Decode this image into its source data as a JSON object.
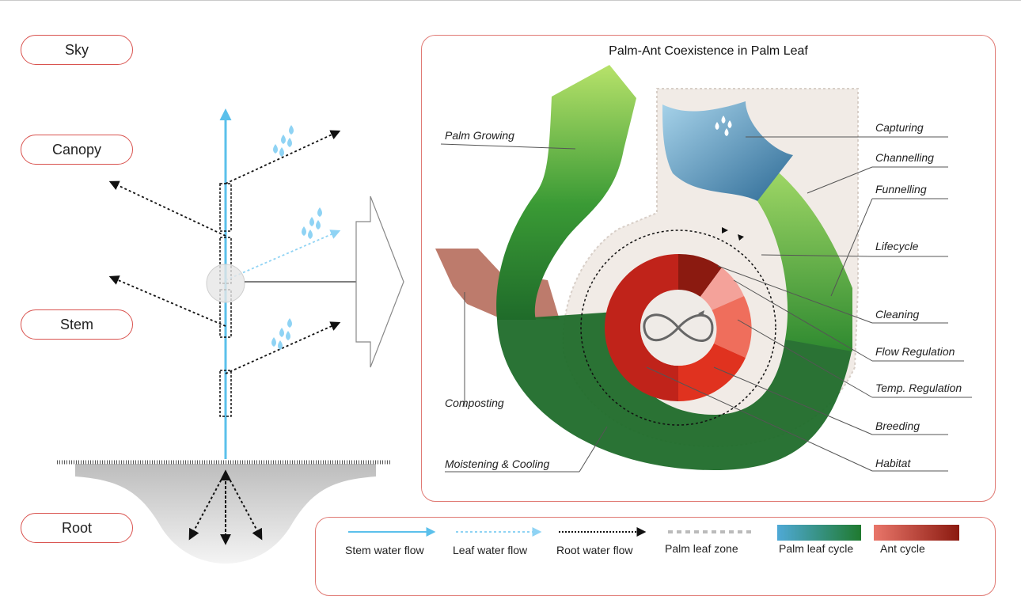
{
  "levels": {
    "sky": "Sky",
    "canopy": "Canopy",
    "stem": "Stem",
    "root": "Root"
  },
  "diagram": {
    "title": "Palm-Ant Coexistence in Palm Leaf",
    "left_labels": {
      "palm_growing": "Palm Growing",
      "composting": "Composting",
      "moistening": "Moistening & Cooling"
    },
    "right_labels": {
      "capturing": "Capturing",
      "channelling": "Channelling",
      "funnelling": "Funnelling",
      "lifecycle": "Lifecycle",
      "cleaning": "Cleaning",
      "flow_regulation": "Flow Regulation",
      "temp_regulation": "Temp. Regulation",
      "breeding": "Breeding",
      "habitat": "Habitat"
    }
  },
  "legend": {
    "stem_water_flow": "Stem water flow",
    "leaf_water_flow": "Leaf water flow",
    "root_water_flow": "Root water flow",
    "palm_leaf_zone": "Palm leaf zone",
    "palm_leaf_cycle": "Palm leaf cycle",
    "ant_cycle": "Ant cycle"
  },
  "colors": {
    "stem_blue": "#5bc0eb",
    "leaf_blue": "#8fd3f4",
    "palm_green_light": "#b7e26a",
    "palm_green_dark": "#1f6b2a",
    "ant_red_light": "#f4a29a",
    "ant_red_dark": "#8b1a10",
    "panel_border": "#e07a74"
  },
  "icons": {
    "water_drops": "water-drops-icon",
    "infinity": "infinity-icon"
  }
}
